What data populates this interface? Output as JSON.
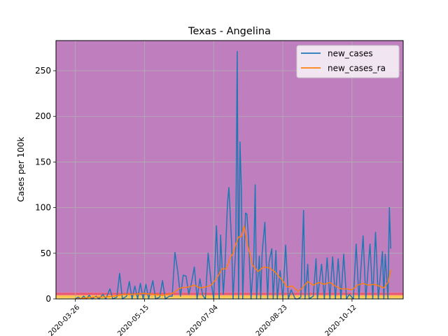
{
  "chart_data": {
    "type": "line",
    "title": "Texas - Angelina",
    "xlabel": "",
    "ylabel": "Cases per 100k",
    "xlim": [
      "2020-03-12",
      "2020-11-18"
    ],
    "ylim": [
      0,
      283
    ],
    "grid": true,
    "legend_position": "top-right",
    "background_bands": [
      {
        "from": 0,
        "to": 1,
        "color": "#ffee88"
      },
      {
        "from": 1,
        "to": 4,
        "color": "#f9c74f"
      },
      {
        "from": 4,
        "to": 7,
        "color": "#e85d75"
      },
      {
        "from": 7,
        "to": 283,
        "color": "#bf7fbf"
      }
    ],
    "x_ticks": [
      "2020-03-26",
      "2020-05-15",
      "2020-07-04",
      "2020-08-23",
      "2020-10-12"
    ],
    "y_ticks": [
      0,
      50,
      100,
      150,
      200,
      250
    ],
    "series": [
      {
        "name": "new_cases",
        "color": "#1f77b4",
        "points": [
          [
            "2020-03-26",
            0
          ],
          [
            "2020-03-28",
            2
          ],
          [
            "2020-03-30",
            0
          ],
          [
            "2020-04-01",
            3
          ],
          [
            "2020-04-03",
            0
          ],
          [
            "2020-04-05",
            4
          ],
          [
            "2020-04-07",
            0
          ],
          [
            "2020-04-10",
            3
          ],
          [
            "2020-04-12",
            0
          ],
          [
            "2020-04-15",
            5
          ],
          [
            "2020-04-17",
            0
          ],
          [
            "2020-04-20",
            11
          ],
          [
            "2020-04-22",
            0
          ],
          [
            "2020-04-25",
            2
          ],
          [
            "2020-04-27",
            28
          ],
          [
            "2020-04-29",
            0
          ],
          [
            "2020-05-02",
            3
          ],
          [
            "2020-05-04",
            19
          ],
          [
            "2020-05-06",
            0
          ],
          [
            "2020-05-08",
            14
          ],
          [
            "2020-05-10",
            0
          ],
          [
            "2020-05-12",
            17
          ],
          [
            "2020-05-14",
            0
          ],
          [
            "2020-05-16",
            16
          ],
          [
            "2020-05-18",
            0
          ],
          [
            "2020-05-21",
            20
          ],
          [
            "2020-05-23",
            0
          ],
          [
            "2020-05-26",
            2
          ],
          [
            "2020-05-28",
            20
          ],
          [
            "2020-05-30",
            0
          ],
          [
            "2020-06-02",
            3
          ],
          [
            "2020-06-04",
            3
          ],
          [
            "2020-06-06",
            51
          ],
          [
            "2020-06-08",
            30
          ],
          [
            "2020-06-10",
            3
          ],
          [
            "2020-06-12",
            26
          ],
          [
            "2020-06-14",
            25
          ],
          [
            "2020-06-16",
            5
          ],
          [
            "2020-06-18",
            18
          ],
          [
            "2020-06-20",
            35
          ],
          [
            "2020-06-22",
            0
          ],
          [
            "2020-06-24",
            22
          ],
          [
            "2020-06-26",
            4
          ],
          [
            "2020-06-28",
            0
          ],
          [
            "2020-06-30",
            50
          ],
          [
            "2020-07-02",
            20
          ],
          [
            "2020-07-04",
            0
          ],
          [
            "2020-07-05",
            40
          ],
          [
            "2020-07-06",
            80
          ],
          [
            "2020-07-08",
            0
          ],
          [
            "2020-07-09",
            70
          ],
          [
            "2020-07-11",
            5
          ],
          [
            "2020-07-12",
            30
          ],
          [
            "2020-07-14",
            105
          ],
          [
            "2020-07-15",
            122
          ],
          [
            "2020-07-17",
            60
          ],
          [
            "2020-07-18",
            0
          ],
          [
            "2020-07-20",
            58
          ],
          [
            "2020-07-21",
            271
          ],
          [
            "2020-07-22",
            0
          ],
          [
            "2020-07-23",
            172
          ],
          [
            "2020-07-24",
            120
          ],
          [
            "2020-07-25",
            0
          ],
          [
            "2020-07-27",
            94
          ],
          [
            "2020-07-28",
            93
          ],
          [
            "2020-07-29",
            70
          ],
          [
            "2020-07-31",
            0
          ],
          [
            "2020-08-02",
            45
          ],
          [
            "2020-08-03",
            125
          ],
          [
            "2020-08-04",
            0
          ],
          [
            "2020-08-06",
            47
          ],
          [
            "2020-08-07",
            0
          ],
          [
            "2020-08-08",
            50
          ],
          [
            "2020-08-10",
            84
          ],
          [
            "2020-08-12",
            0
          ],
          [
            "2020-08-13",
            40
          ],
          [
            "2020-08-15",
            55
          ],
          [
            "2020-08-16",
            0
          ],
          [
            "2020-08-18",
            53
          ],
          [
            "2020-08-19",
            0
          ],
          [
            "2020-08-21",
            31
          ],
          [
            "2020-08-23",
            0
          ],
          [
            "2020-08-25",
            59
          ],
          [
            "2020-08-27",
            0
          ],
          [
            "2020-08-29",
            10
          ],
          [
            "2020-09-01",
            0
          ],
          [
            "2020-09-03",
            0
          ],
          [
            "2020-09-05",
            2
          ],
          [
            "2020-09-07",
            97
          ],
          [
            "2020-09-08",
            0
          ],
          [
            "2020-09-10",
            38
          ],
          [
            "2020-09-11",
            0
          ],
          [
            "2020-09-14",
            3
          ],
          [
            "2020-09-16",
            44
          ],
          [
            "2020-09-17",
            0
          ],
          [
            "2020-09-20",
            38
          ],
          [
            "2020-09-22",
            0
          ],
          [
            "2020-09-24",
            45
          ],
          [
            "2020-09-26",
            0
          ],
          [
            "2020-09-28",
            46
          ],
          [
            "2020-09-30",
            0
          ],
          [
            "2020-10-02",
            44
          ],
          [
            "2020-10-04",
            0
          ],
          [
            "2020-10-06",
            49
          ],
          [
            "2020-10-08",
            0
          ],
          [
            "2020-10-10",
            5
          ],
          [
            "2020-10-13",
            0
          ],
          [
            "2020-10-15",
            60
          ],
          [
            "2020-10-17",
            0
          ],
          [
            "2020-10-20",
            69
          ],
          [
            "2020-10-22",
            0
          ],
          [
            "2020-10-25",
            60
          ],
          [
            "2020-10-27",
            0
          ],
          [
            "2020-10-29",
            73
          ],
          [
            "2020-10-31",
            0
          ],
          [
            "2020-11-03",
            52
          ],
          [
            "2020-11-04",
            0
          ],
          [
            "2020-11-05",
            49
          ],
          [
            "2020-11-07",
            0
          ],
          [
            "2020-11-08",
            100
          ],
          [
            "2020-11-09",
            55
          ]
        ]
      },
      {
        "name": "new_cases_ra",
        "color": "#ff7f0e",
        "points": [
          [
            "2020-03-26",
            0
          ],
          [
            "2020-04-02",
            1
          ],
          [
            "2020-04-09",
            2
          ],
          [
            "2020-04-16",
            2
          ],
          [
            "2020-04-23",
            3
          ],
          [
            "2020-04-30",
            5
          ],
          [
            "2020-05-07",
            5
          ],
          [
            "2020-05-14",
            6
          ],
          [
            "2020-05-21",
            5
          ],
          [
            "2020-05-28",
            4
          ],
          [
            "2020-06-04",
            6
          ],
          [
            "2020-06-10",
            12
          ],
          [
            "2020-06-16",
            13
          ],
          [
            "2020-06-20",
            15
          ],
          [
            "2020-06-24",
            12
          ],
          [
            "2020-06-28",
            13
          ],
          [
            "2020-07-02",
            15
          ],
          [
            "2020-07-06",
            22
          ],
          [
            "2020-07-10",
            33
          ],
          [
            "2020-07-13",
            33
          ],
          [
            "2020-07-16",
            45
          ],
          [
            "2020-07-18",
            50
          ],
          [
            "2020-07-20",
            60
          ],
          [
            "2020-07-22",
            68
          ],
          [
            "2020-07-24",
            68
          ],
          [
            "2020-07-26",
            80
          ],
          [
            "2020-07-28",
            62
          ],
          [
            "2020-07-30",
            50
          ],
          [
            "2020-08-01",
            37
          ],
          [
            "2020-08-05",
            30
          ],
          [
            "2020-08-09",
            35
          ],
          [
            "2020-08-13",
            34
          ],
          [
            "2020-08-17",
            30
          ],
          [
            "2020-08-20",
            25
          ],
          [
            "2020-08-23",
            20
          ],
          [
            "2020-08-26",
            13
          ],
          [
            "2020-08-30",
            14
          ],
          [
            "2020-09-03",
            8
          ],
          [
            "2020-09-06",
            12
          ],
          [
            "2020-09-10",
            19
          ],
          [
            "2020-09-14",
            15
          ],
          [
            "2020-09-18",
            18
          ],
          [
            "2020-09-22",
            16
          ],
          [
            "2020-09-26",
            18
          ],
          [
            "2020-09-30",
            14
          ],
          [
            "2020-10-04",
            11
          ],
          [
            "2020-10-08",
            11
          ],
          [
            "2020-10-12",
            10
          ],
          [
            "2020-10-16",
            15
          ],
          [
            "2020-10-20",
            17
          ],
          [
            "2020-10-24",
            15
          ],
          [
            "2020-10-28",
            16
          ],
          [
            "2020-11-01",
            14
          ],
          [
            "2020-11-04",
            12
          ],
          [
            "2020-11-07",
            18
          ],
          [
            "2020-11-09",
            32
          ]
        ]
      }
    ]
  }
}
